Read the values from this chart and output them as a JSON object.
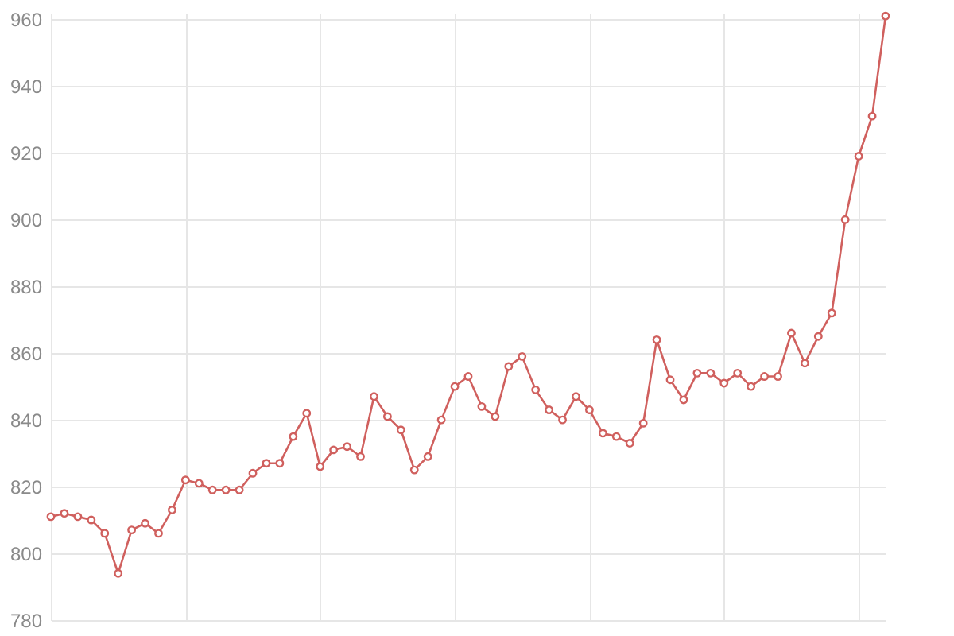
{
  "chart_data": {
    "type": "line",
    "categories": [
      null,
      null,
      null,
      null,
      null,
      null,
      null,
      null,
      null,
      null,
      null,
      null,
      null,
      null,
      null,
      null,
      null,
      null,
      null,
      null,
      null,
      null,
      null,
      null,
      null,
      null,
      null,
      null,
      null,
      null,
      null,
      null,
      null,
      null,
      null,
      null,
      null,
      null,
      null,
      null,
      null,
      null,
      null,
      null,
      null,
      null,
      null,
      null,
      null,
      null,
      null,
      null,
      null,
      null,
      null,
      null,
      null,
      null,
      null,
      null,
      null,
      null,
      null
    ],
    "series": [
      {
        "color": "#d0605e",
        "values": [
          811,
          812,
          811,
          810,
          806,
          794,
          807,
          809,
          806,
          813,
          822,
          821,
          819,
          819,
          819,
          824,
          827,
          827,
          835,
          842,
          826,
          831,
          832,
          829,
          847,
          841,
          837,
          825,
          829,
          840,
          850,
          853,
          844,
          841,
          856,
          859,
          849,
          843,
          840,
          847,
          843,
          836,
          835,
          833,
          839,
          864,
          852,
          846,
          854,
          854,
          851,
          854,
          850,
          853,
          853,
          866,
          857,
          865,
          872,
          900,
          919,
          931,
          961
        ]
      }
    ],
    "ylim": [
      780,
      962
    ],
    "yticks": [
      780,
      800,
      820,
      840,
      860,
      880,
      900,
      920,
      940,
      960
    ],
    "grid": true,
    "marker": "circle",
    "tick_labels": "y"
  }
}
